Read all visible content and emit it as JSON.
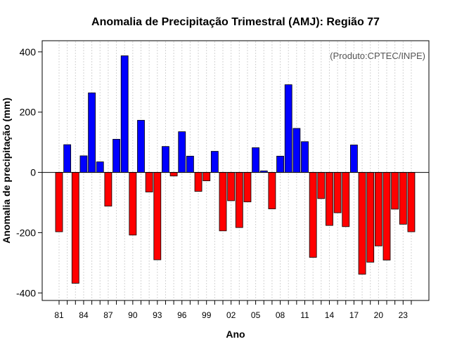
{
  "chart_data": {
    "type": "bar",
    "title": "Anomalia de Precipitação Trimestral (AMJ): Região 77",
    "xlabel": "Ano",
    "ylabel": "Anomalia de precipitação (mm)",
    "credit": "(Produto:CPTEC/INPE)",
    "ylim": [
      -425,
      437
    ],
    "yticks": [
      -400,
      -200,
      0,
      200,
      400
    ],
    "years": [
      1981,
      1982,
      1983,
      1984,
      1985,
      1986,
      1987,
      1988,
      1989,
      1990,
      1991,
      1992,
      1993,
      1994,
      1995,
      1996,
      1997,
      1998,
      1999,
      2000,
      2001,
      2002,
      2003,
      2004,
      2005,
      2006,
      2007,
      2008,
      2009,
      2010,
      2011,
      2012,
      2013,
      2014,
      2015,
      2016,
      2017,
      2018,
      2019,
      2020,
      2021,
      2022,
      2023,
      2024
    ],
    "values": [
      -197,
      92,
      -368,
      55,
      264,
      35,
      -112,
      110,
      387,
      -208,
      173,
      -65,
      -290,
      86,
      -12,
      135,
      54,
      -63,
      -28,
      70,
      -194,
      -94,
      -183,
      -98,
      82,
      5,
      -121,
      54,
      291,
      146,
      102,
      -282,
      -87,
      -176,
      -134,
      -180,
      91,
      -338,
      -298,
      -244,
      -291,
      -122,
      -172,
      -197
    ],
    "xtick_indices": [
      0,
      3,
      6,
      9,
      12,
      15,
      18,
      21,
      24,
      27,
      30,
      33,
      36,
      39,
      42
    ],
    "xtick_labels": [
      "81",
      "84",
      "87",
      "90",
      "93",
      "96",
      "99",
      "02",
      "05",
      "08",
      "11",
      "14",
      "17",
      "20",
      "23"
    ],
    "positive_color": "#0000ff",
    "negative_color": "#ff0000",
    "grid_color": "#d3d3d3"
  }
}
